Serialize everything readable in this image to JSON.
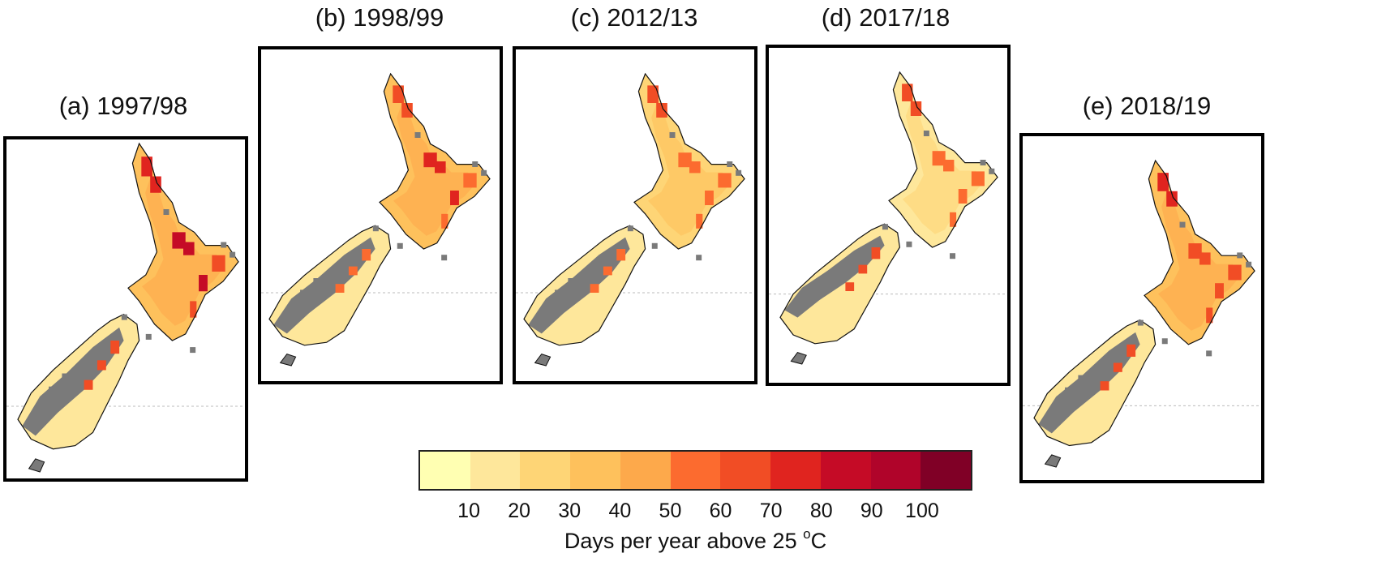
{
  "panels": [
    {
      "id": "a",
      "title": "(a) 1997/98"
    },
    {
      "id": "b",
      "title": "(b) 1998/99"
    },
    {
      "id": "c",
      "title": "(c) 2012/13"
    },
    {
      "id": "d",
      "title": "(d) 2017/18"
    },
    {
      "id": "e",
      "title": "(e) 2018/19"
    }
  ],
  "legend": {
    "title_prefix": "Days per year above 25 ",
    "title_sup": "o",
    "title_suffix": "C",
    "ticks": [
      "10",
      "20",
      "30",
      "40",
      "50",
      "60",
      "70",
      "80",
      "90",
      "100"
    ],
    "colors": [
      "#ffffb2",
      "#fee79b",
      "#fed576",
      "#fec15c",
      "#fda94b",
      "#fc6b2f",
      "#f14d25",
      "#e0241f",
      "#c50b26",
      "#b0042a",
      "#800026"
    ]
  },
  "colors": {
    "no_data": "#7a7a7a",
    "coast": "#111111",
    "latitude_line": "#bbbbbb"
  }
}
